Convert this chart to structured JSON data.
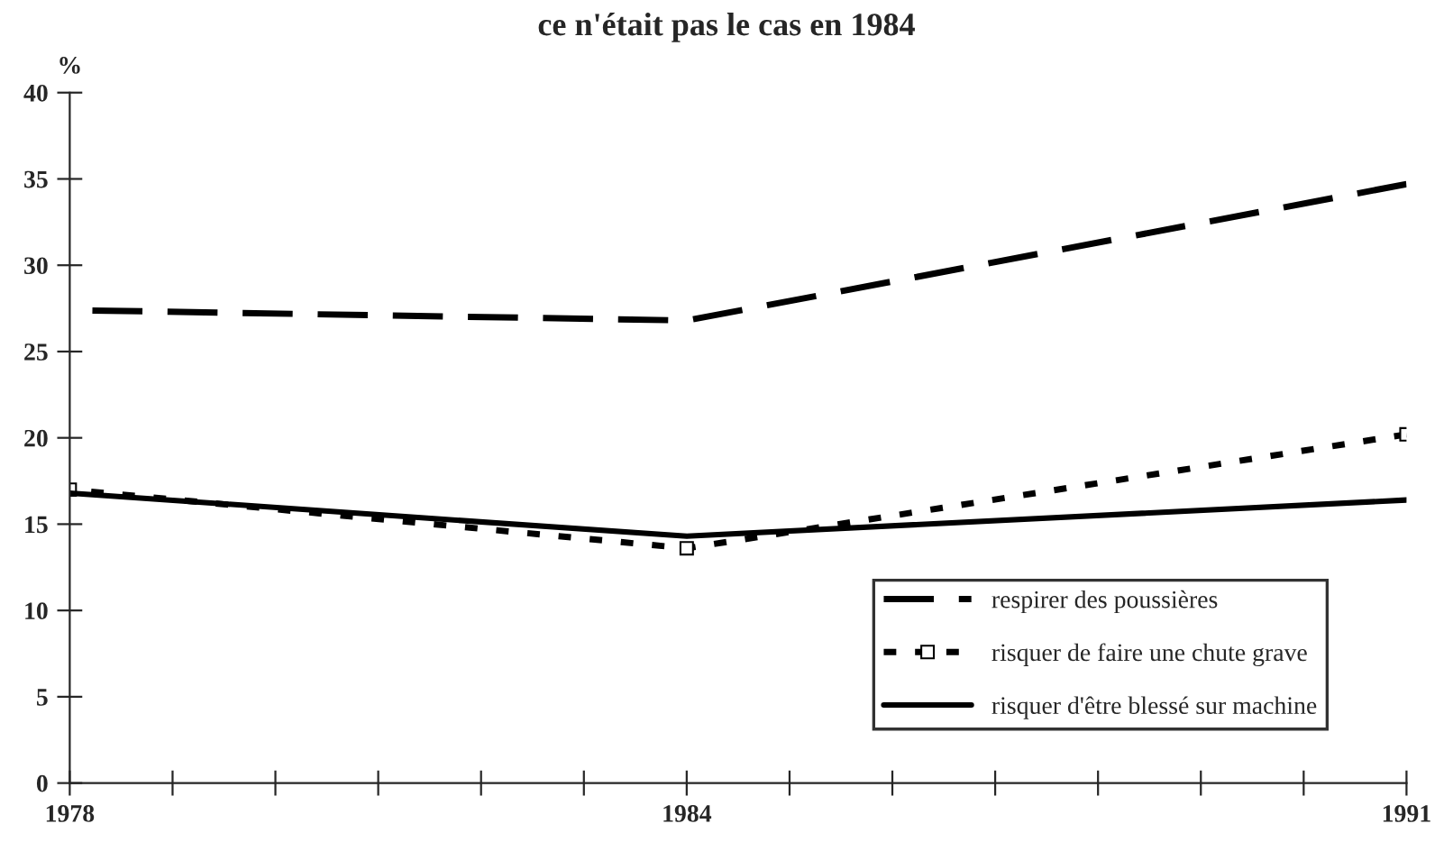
{
  "chart_data": {
    "type": "line",
    "title": "ce n'était pas le cas en 1984",
    "ylabel": "%",
    "x": [
      1978,
      1984,
      1991
    ],
    "series": [
      {
        "name": "respirer des poussières",
        "color": "#000000",
        "values": [
          27.4,
          26.8,
          34.7
        ],
        "line_style": "dashed",
        "marker": "none"
      },
      {
        "name": "risquer de faire une chute grave",
        "color": "#000000",
        "values": [
          17.0,
          13.6,
          20.2
        ],
        "line_style": "dotted",
        "marker": "square"
      },
      {
        "name": "risquer d'être blessé sur machine",
        "color": "#000000",
        "values": [
          16.8,
          14.3,
          16.4
        ],
        "line_style": "solid",
        "marker": "none"
      }
    ],
    "xlim": [
      1978,
      1991
    ],
    "xticks": [
      1978,
      {
        "value": 1979,
        "label": null
      },
      {
        "value": 1980,
        "label": null
      },
      {
        "value": 1981,
        "label": null
      },
      {
        "value": 1982,
        "label": null
      },
      {
        "value": 1983,
        "label": null
      },
      1984,
      {
        "value": 1985,
        "label": null
      },
      {
        "value": 1986,
        "label": null
      },
      {
        "value": 1987,
        "label": null
      },
      {
        "value": 1988,
        "label": null
      },
      {
        "value": 1989,
        "label": null
      },
      {
        "value": 1990,
        "label": null
      },
      1991
    ],
    "ylim": [
      0,
      40
    ],
    "yticks": [
      0,
      5,
      10,
      15,
      20,
      25,
      30,
      35,
      40
    ],
    "grid": false,
    "legend": "bottom right"
  }
}
